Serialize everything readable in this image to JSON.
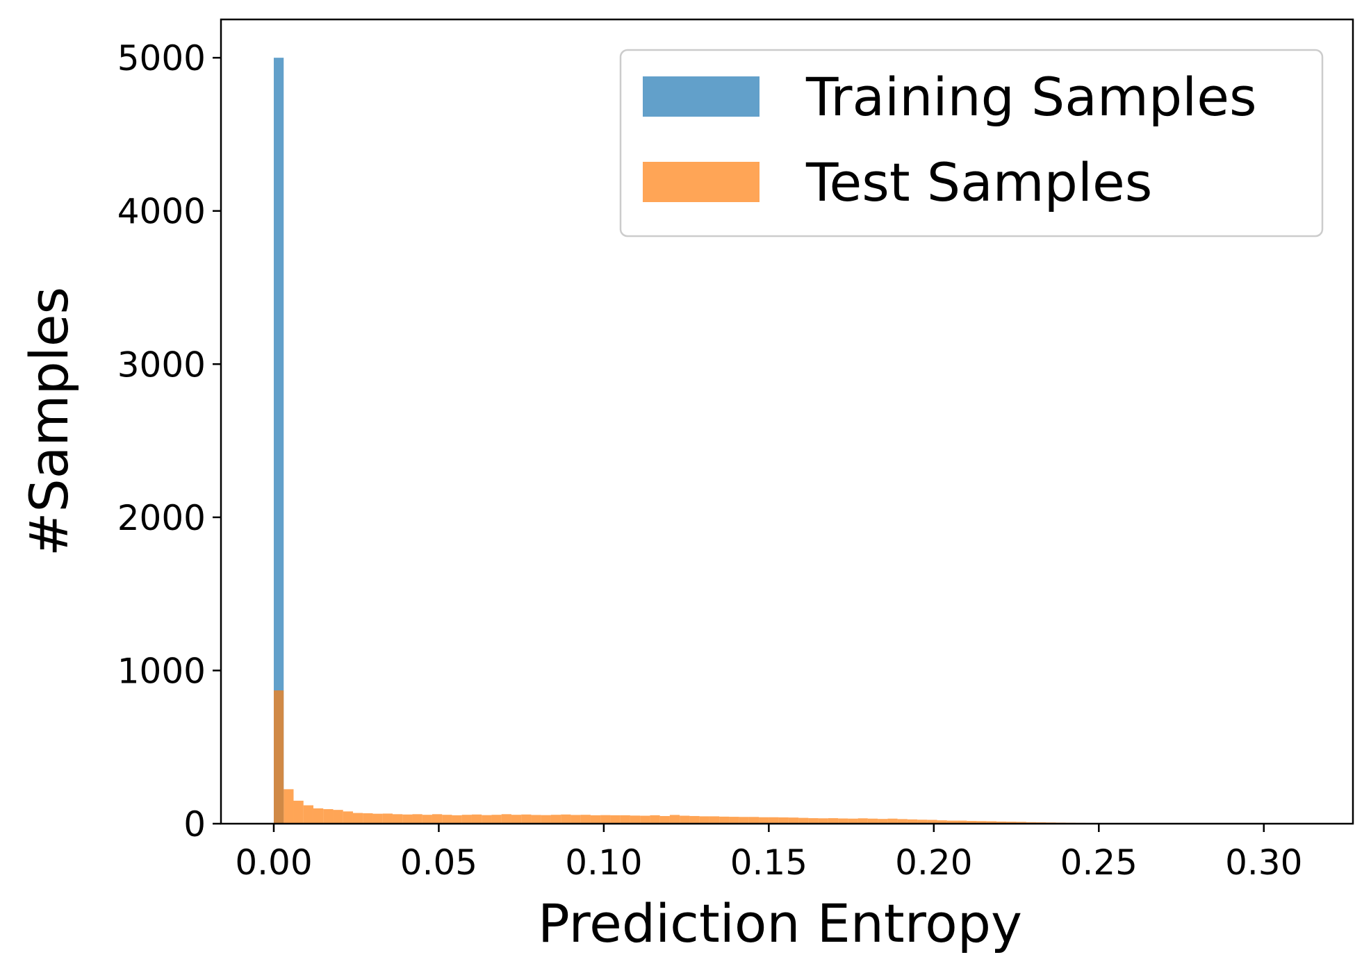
{
  "chart_data": {
    "type": "bar",
    "xlabel": "Prediction Entropy",
    "ylabel": "#Samples",
    "xlim": [
      -0.016,
      0.327
    ],
    "ylim": [
      0,
      5250
    ],
    "xticks": [
      "0.00",
      "0.05",
      "0.10",
      "0.15",
      "0.20",
      "0.25",
      "0.30"
    ],
    "yticks": [
      "0",
      "1000",
      "2000",
      "3000",
      "4000",
      "5000"
    ],
    "bin_width": 0.003,
    "legend": {
      "position": "upper right"
    },
    "series": [
      {
        "name": "Training Samples",
        "color": "#1f77b4",
        "bins": [
          {
            "x": 0.0,
            "count": 5000
          }
        ]
      },
      {
        "name": "Test Samples",
        "color": "#ff7f0e",
        "bins": [
          {
            "x": 0.0,
            "count": 870
          },
          {
            "x": 0.003,
            "count": 225
          },
          {
            "x": 0.006,
            "count": 150
          },
          {
            "x": 0.009,
            "count": 120
          },
          {
            "x": 0.012,
            "count": 100
          },
          {
            "x": 0.015,
            "count": 95
          },
          {
            "x": 0.018,
            "count": 90
          },
          {
            "x": 0.021,
            "count": 80
          },
          {
            "x": 0.024,
            "count": 70
          },
          {
            "x": 0.027,
            "count": 68
          },
          {
            "x": 0.03,
            "count": 65
          },
          {
            "x": 0.033,
            "count": 66
          },
          {
            "x": 0.036,
            "count": 62
          },
          {
            "x": 0.039,
            "count": 60
          },
          {
            "x": 0.042,
            "count": 62
          },
          {
            "x": 0.045,
            "count": 58
          },
          {
            "x": 0.048,
            "count": 62
          },
          {
            "x": 0.051,
            "count": 58
          },
          {
            "x": 0.054,
            "count": 55
          },
          {
            "x": 0.057,
            "count": 58
          },
          {
            "x": 0.06,
            "count": 60
          },
          {
            "x": 0.063,
            "count": 56
          },
          {
            "x": 0.066,
            "count": 58
          },
          {
            "x": 0.069,
            "count": 62
          },
          {
            "x": 0.072,
            "count": 58
          },
          {
            "x": 0.075,
            "count": 60
          },
          {
            "x": 0.078,
            "count": 57
          },
          {
            "x": 0.081,
            "count": 56
          },
          {
            "x": 0.084,
            "count": 58
          },
          {
            "x": 0.087,
            "count": 60
          },
          {
            "x": 0.09,
            "count": 57
          },
          {
            "x": 0.093,
            "count": 58
          },
          {
            "x": 0.096,
            "count": 55
          },
          {
            "x": 0.099,
            "count": 56
          },
          {
            "x": 0.102,
            "count": 55
          },
          {
            "x": 0.105,
            "count": 55
          },
          {
            "x": 0.108,
            "count": 53
          },
          {
            "x": 0.111,
            "count": 52
          },
          {
            "x": 0.114,
            "count": 55
          },
          {
            "x": 0.117,
            "count": 50
          },
          {
            "x": 0.12,
            "count": 57
          },
          {
            "x": 0.123,
            "count": 52
          },
          {
            "x": 0.126,
            "count": 50
          },
          {
            "x": 0.129,
            "count": 48
          },
          {
            "x": 0.132,
            "count": 48
          },
          {
            "x": 0.135,
            "count": 46
          },
          {
            "x": 0.138,
            "count": 45
          },
          {
            "x": 0.141,
            "count": 44
          },
          {
            "x": 0.144,
            "count": 44
          },
          {
            "x": 0.147,
            "count": 42
          },
          {
            "x": 0.15,
            "count": 42
          },
          {
            "x": 0.153,
            "count": 41
          },
          {
            "x": 0.156,
            "count": 40
          },
          {
            "x": 0.159,
            "count": 38
          },
          {
            "x": 0.162,
            "count": 36
          },
          {
            "x": 0.165,
            "count": 35
          },
          {
            "x": 0.168,
            "count": 36
          },
          {
            "x": 0.171,
            "count": 34
          },
          {
            "x": 0.174,
            "count": 33
          },
          {
            "x": 0.177,
            "count": 35
          },
          {
            "x": 0.18,
            "count": 33
          },
          {
            "x": 0.183,
            "count": 31
          },
          {
            "x": 0.186,
            "count": 33
          },
          {
            "x": 0.189,
            "count": 30
          },
          {
            "x": 0.192,
            "count": 28
          },
          {
            "x": 0.195,
            "count": 26
          },
          {
            "x": 0.198,
            "count": 25
          },
          {
            "x": 0.201,
            "count": 22
          },
          {
            "x": 0.204,
            "count": 20
          },
          {
            "x": 0.207,
            "count": 20
          },
          {
            "x": 0.21,
            "count": 18
          },
          {
            "x": 0.213,
            "count": 17
          },
          {
            "x": 0.216,
            "count": 16
          },
          {
            "x": 0.219,
            "count": 14
          },
          {
            "x": 0.222,
            "count": 13
          },
          {
            "x": 0.225,
            "count": 12
          },
          {
            "x": 0.228,
            "count": 10
          },
          {
            "x": 0.231,
            "count": 9
          },
          {
            "x": 0.234,
            "count": 8
          },
          {
            "x": 0.237,
            "count": 7
          },
          {
            "x": 0.24,
            "count": 6
          },
          {
            "x": 0.243,
            "count": 5
          },
          {
            "x": 0.246,
            "count": 4
          },
          {
            "x": 0.249,
            "count": 3
          },
          {
            "x": 0.252,
            "count": 3
          },
          {
            "x": 0.255,
            "count": 2
          },
          {
            "x": 0.258,
            "count": 2
          },
          {
            "x": 0.261,
            "count": 2
          },
          {
            "x": 0.264,
            "count": 1
          },
          {
            "x": 0.267,
            "count": 1
          },
          {
            "x": 0.27,
            "count": 1
          },
          {
            "x": 0.273,
            "count": 1
          },
          {
            "x": 0.276,
            "count": 1
          },
          {
            "x": 0.279,
            "count": 1
          },
          {
            "x": 0.282,
            "count": 1
          },
          {
            "x": 0.285,
            "count": 1
          },
          {
            "x": 0.288,
            "count": 1
          },
          {
            "x": 0.291,
            "count": 1
          },
          {
            "x": 0.294,
            "count": 1
          },
          {
            "x": 0.297,
            "count": 1
          },
          {
            "x": 0.3,
            "count": 1
          },
          {
            "x": 0.303,
            "count": 1
          },
          {
            "x": 0.306,
            "count": 1
          },
          {
            "x": 0.309,
            "count": 1
          }
        ]
      }
    ]
  }
}
